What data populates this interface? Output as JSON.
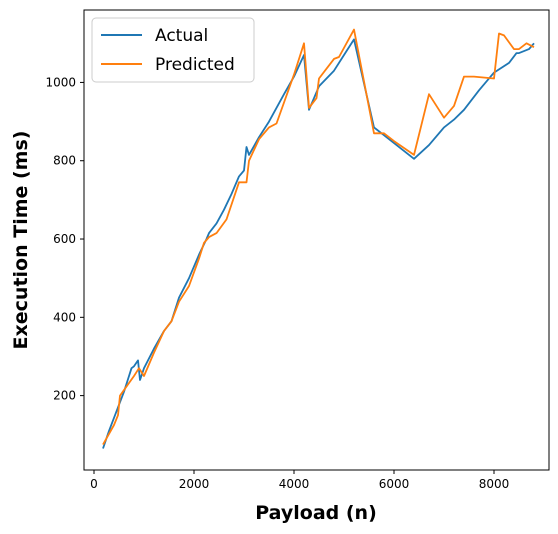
{
  "chart_data": {
    "type": "line",
    "title": "",
    "xlabel": "Payload (n)",
    "ylabel": "Execution Time (ms)",
    "xlim": [
      -200,
      9100
    ],
    "ylim": [
      10,
      1185
    ],
    "xticks": [
      0,
      2000,
      4000,
      6000,
      8000
    ],
    "yticks": [
      200,
      400,
      600,
      800,
      1000
    ],
    "grid": false,
    "legend_position": "top-left",
    "series": [
      {
        "name": "Actual",
        "color": "#1f77b4",
        "x": [
          180,
          300,
          450,
          600,
          750,
          800,
          880,
          920,
          1000,
          1200,
          1400,
          1550,
          1700,
          1900,
          2100,
          2250,
          2300,
          2450,
          2600,
          2750,
          2900,
          3000,
          3050,
          3100,
          3300,
          3500,
          3800,
          4000,
          4200,
          4300,
          4500,
          4800,
          5000,
          5200,
          5600,
          6000,
          6400,
          6700,
          7000,
          7200,
          7400,
          7700,
          8000,
          8300,
          8450,
          8500,
          8600,
          8700,
          8800
        ],
        "y": [
          65,
          110,
          160,
          210,
          270,
          275,
          290,
          240,
          270,
          320,
          365,
          390,
          450,
          500,
          560,
          600,
          615,
          640,
          675,
          715,
          760,
          775,
          835,
          815,
          860,
          900,
          970,
          1015,
          1070,
          930,
          990,
          1030,
          1070,
          1110,
          885,
          845,
          805,
          840,
          885,
          905,
          930,
          980,
          1025,
          1050,
          1075,
          1075,
          1080,
          1085,
          1100
        ]
      },
      {
        "name": "Predicted",
        "color": "#ff7f0e",
        "x": [
          180,
          400,
          480,
          520,
          800,
          900,
          1000,
          1200,
          1400,
          1550,
          1700,
          1900,
          2100,
          2200,
          2300,
          2450,
          2650,
          2900,
          3050,
          3100,
          3300,
          3500,
          3650,
          4000,
          4200,
          4300,
          4450,
          4500,
          4650,
          4800,
          4900,
          5200,
          5600,
          5800,
          6000,
          6400,
          6700,
          7000,
          7200,
          7400,
          7600,
          8000,
          8100,
          8200,
          8400,
          8500,
          8650,
          8800
        ],
        "y": [
          75,
          125,
          150,
          200,
          250,
          270,
          250,
          310,
          365,
          390,
          440,
          480,
          550,
          590,
          605,
          615,
          650,
          745,
          745,
          800,
          855,
          885,
          895,
          1020,
          1100,
          935,
          960,
          1010,
          1035,
          1060,
          1065,
          1135,
          870,
          870,
          850,
          815,
          970,
          910,
          940,
          1015,
          1015,
          1010,
          1125,
          1120,
          1085,
          1085,
          1100,
          1090
        ]
      }
    ]
  }
}
